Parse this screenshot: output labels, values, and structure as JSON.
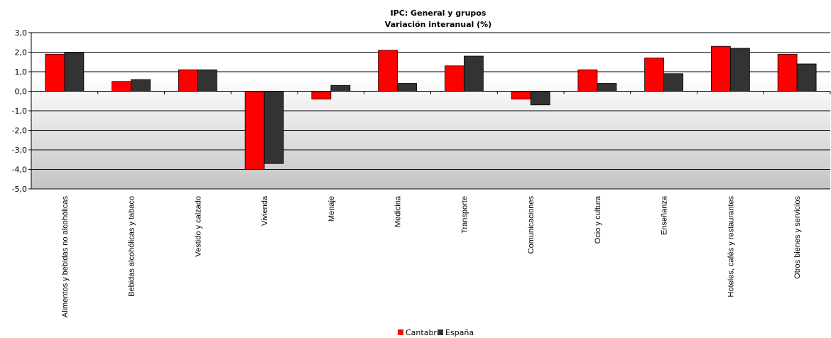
{
  "chart_data": {
    "type": "bar",
    "title": "IPC: General  y grupos",
    "subtitle": "Variación  interanual  (%)",
    "categories": [
      "Alimentos y bebidas no alcohólicas",
      "Bebidas alcohólicas y tabaco",
      "Vestido y calzado",
      "Vivienda",
      "Menaje",
      "Medicina",
      "Transporte",
      "Comunicaciones",
      "Ocio y cultura",
      "Enseñanza",
      "Hoteles, cafés y restaurantes",
      "Otros bienes y servicios"
    ],
    "series": [
      {
        "name": "Cantabria",
        "color": "#ff0000",
        "values": [
          1.9,
          0.5,
          1.1,
          -4.0,
          -0.4,
          2.1,
          1.3,
          -0.4,
          1.1,
          1.7,
          2.3,
          1.9
        ]
      },
      {
        "name": "España",
        "color": "#333333",
        "values": [
          2.0,
          0.6,
          1.1,
          -3.7,
          0.3,
          0.4,
          1.8,
          -0.7,
          0.4,
          0.9,
          2.2,
          1.4
        ]
      }
    ],
    "y_ticks": [
      "3,0",
      "2,0",
      "1,0",
      "0,0",
      "-1,0",
      "-2,0",
      "-3,0",
      "-4,0",
      "-5,0"
    ],
    "ylim": [
      -5,
      3
    ],
    "grid": true,
    "legend_position": "bottom"
  }
}
